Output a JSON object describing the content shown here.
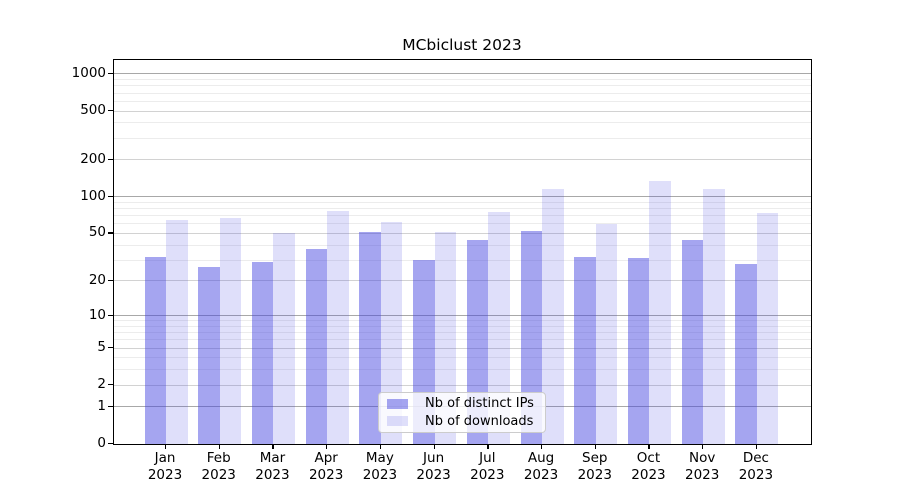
{
  "title": "MCbiclust 2023",
  "legend": {
    "items": [
      {
        "label": "Nb of distinct IPs",
        "key": "ips"
      },
      {
        "label": "Nb of downloads",
        "key": "downloads"
      }
    ]
  },
  "colors": {
    "ips_bar": "rgba(64,64,224,0.47)",
    "downloads_bar": "rgba(64,64,224,0.17)",
    "grid_major": "#a8a8a8",
    "grid_mid": "#d2d2d2",
    "grid_minor": "#ececec",
    "axis": "#000000",
    "legend_border": "#cccccc",
    "legend_bg": "rgba(255,255,255,0.8)"
  },
  "chart_data": {
    "type": "bar",
    "title": "MCbiclust 2023",
    "categories": [
      "Jan 2023",
      "Feb 2023",
      "Mar 2023",
      "Apr 2023",
      "May 2023",
      "Jun 2023",
      "Jul 2023",
      "Aug 2023",
      "Sep 2023",
      "Oct 2023",
      "Nov 2023",
      "Dec 2023"
    ],
    "series": [
      {
        "name": "Nb of distinct IPs",
        "values": [
          32,
          26,
          29,
          37,
          51,
          30,
          44,
          52,
          32,
          31,
          44,
          28
        ]
      },
      {
        "name": "Nb of downloads",
        "values": [
          65,
          67,
          50,
          77,
          62,
          51,
          75,
          115,
          60,
          134,
          115,
          74
        ]
      }
    ],
    "yscale": "log1p",
    "ylim": [
      0,
      1298
    ],
    "y_ticks": [
      0,
      1,
      2,
      5,
      10,
      20,
      50,
      100,
      200,
      500,
      1000
    ],
    "y_minor_ticks": [
      3,
      4,
      6,
      7,
      8,
      9,
      30,
      40,
      60,
      70,
      80,
      90,
      300,
      400,
      600,
      700,
      800,
      900
    ],
    "grid": true,
    "legend_position": "lower center"
  }
}
